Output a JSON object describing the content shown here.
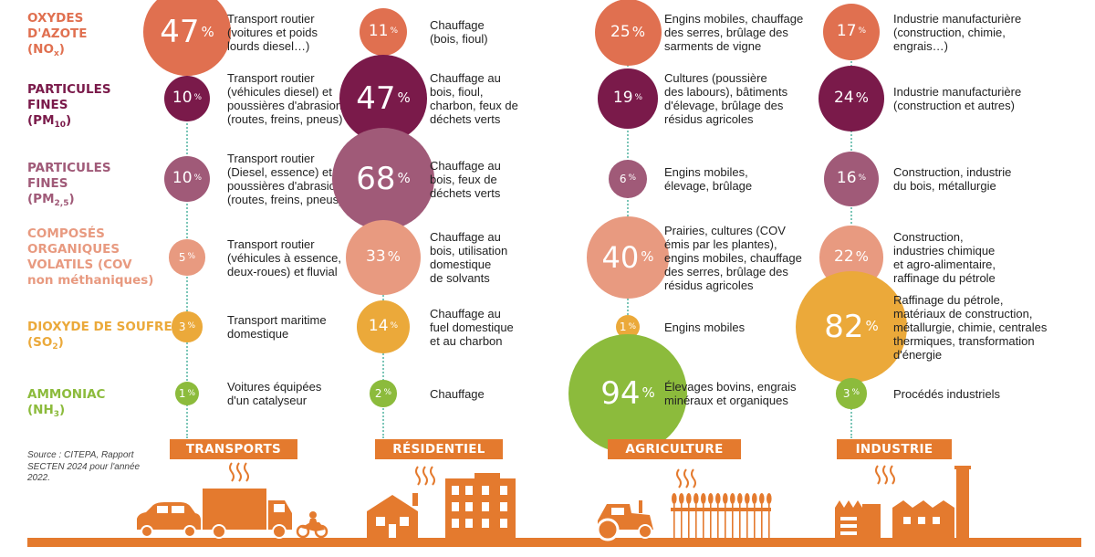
{
  "colors": {
    "orange": "#e47a2e",
    "salmon_dark": "#e07050",
    "wine": "#7a1a4a",
    "mauve": "#a05a78",
    "peach": "#e89a80",
    "yellow": "#eba93a",
    "green": "#8cbb3c",
    "dots": "#7cc6b8"
  },
  "source": [
    "Source : CITEPA, Rapport",
    "SECTEN 2024 pour l'année",
    "2022."
  ],
  "chart_data": {
    "type": "bubble-table",
    "unit": "%",
    "sectors": [
      "TRANSPORTS",
      "RÉSIDENTIEL",
      "AGRICULTURE",
      "INDUSTRIE"
    ],
    "rows": [
      {
        "lines": [
          "OXYDES",
          "D'AZOTE"
        ],
        "formula": "NO",
        "formula_sub": "x",
        "color": "#e07050",
        "values": [
          47,
          11,
          25,
          17
        ],
        "descriptions": [
          [
            "Transport routier",
            "(voitures et poids",
            "lourds diesel…)"
          ],
          [
            "Chauffage",
            "(bois, fioul)"
          ],
          [
            "Engins mobiles, chauffage",
            "des serres, brûlage des",
            "sarments de vigne"
          ],
          [
            "Industrie manufacturière",
            "(construction, chimie,",
            "engrais…)"
          ]
        ]
      },
      {
        "lines": [
          "PARTICULES",
          "FINES"
        ],
        "formula": "PM",
        "formula_sub": "10",
        "color": "#7a1a4a",
        "values": [
          10,
          47,
          19,
          24
        ],
        "descriptions": [
          [
            "Transport routier",
            "(véhicules diesel) et",
            "poussières d'abrasion",
            "(routes, freins, pneus)"
          ],
          [
            "Chauffage au",
            "bois, fioul,",
            "charbon, feux de",
            "déchets verts"
          ],
          [
            "Cultures (poussière",
            "des labours), bâtiments",
            "d'élevage, brûlage des",
            "résidus agricoles"
          ],
          [
            "Industrie manufacturière",
            "(construction et autres)"
          ]
        ]
      },
      {
        "lines": [
          "PARTICULES",
          "FINES"
        ],
        "formula": "PM",
        "formula_sub": "2,5",
        "color": "#a05a78",
        "values": [
          10,
          68,
          6,
          16
        ],
        "descriptions": [
          [
            "Transport routier",
            "(Diesel, essence) et",
            "poussières d'abrasion",
            "(routes, freins, pneus)"
          ],
          [
            "Chauffage au",
            "bois, feux de",
            "déchets verts"
          ],
          [
            "Engins mobiles,",
            "élevage, brûlage"
          ],
          [
            "Construction, industrie",
            "du bois, métallurgie"
          ]
        ]
      },
      {
        "lines": [
          "COMPOSÉS",
          "ORGANIQUES",
          "VOLATILS (COV",
          "non méthaniques)"
        ],
        "formula": "",
        "formula_sub": "",
        "color": "#e89a80",
        "values": [
          5,
          33,
          40,
          22
        ],
        "descriptions": [
          [
            "Transport routier",
            "(véhicules à essence,",
            "deux-roues) et fluvial"
          ],
          [
            "Chauffage au",
            "bois, utilisation",
            "domestique",
            "de solvants"
          ],
          [
            "Prairies, cultures (COV",
            "émis par les plantes),",
            "engins mobiles, chauffage",
            "des serres, brûlage des",
            "résidus agricoles"
          ],
          [
            "Construction,",
            "industries chimique",
            "et agro-alimentaire,",
            "raffinage du pétrole"
          ]
        ]
      },
      {
        "lines": [
          "DIOXYDE DE SOUFRE"
        ],
        "formula": "SO",
        "formula_sub": "2",
        "color": "#eba93a",
        "values": [
          3,
          14,
          1,
          82
        ],
        "descriptions": [
          [
            "Transport maritime",
            "domestique"
          ],
          [
            "Chauffage au",
            "fuel domestique",
            "et au charbon"
          ],
          [
            "Engins mobiles"
          ],
          [
            "Raffinage du pétrole,",
            "matériaux de construction,",
            "métallurgie, chimie, centrales",
            "thermiques, transformation",
            "d'énergie"
          ]
        ]
      },
      {
        "lines": [
          "AMMONIAC"
        ],
        "formula": "NH",
        "formula_sub": "3",
        "color": "#8cbb3c",
        "values": [
          1,
          2,
          94,
          3
        ],
        "descriptions": [
          [
            "Voitures équipées",
            "d'un catalyseur"
          ],
          [
            "Chauffage"
          ],
          [
            "Élevages bovins, engrais",
            "minéraux et organiques"
          ],
          [
            "Procédés industriels"
          ]
        ]
      }
    ]
  }
}
